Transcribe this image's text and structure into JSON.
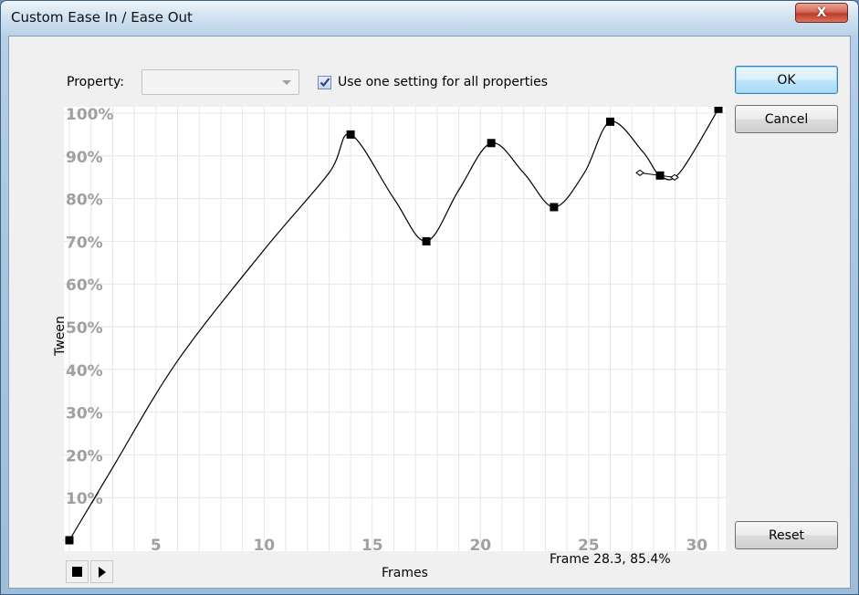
{
  "window": {
    "title": "Custom Ease In / Ease Out",
    "close_glyph": "X"
  },
  "property": {
    "label": "Property:",
    "selected_value": ""
  },
  "options": {
    "use_one_setting_label": "Use one setting for all properties",
    "use_one_setting_checked": true
  },
  "buttons": {
    "ok": "OK",
    "cancel": "Cancel",
    "reset": "Reset"
  },
  "graph": {
    "ylabel": "Tween",
    "xlabel": "Frames",
    "readout": "Frame 28.3,  85.4%",
    "y_ticks": [
      "100%",
      "90%",
      "80%",
      "70%",
      "60%",
      "50%",
      "40%",
      "30%",
      "20%",
      "10%"
    ],
    "x_ticks": [
      "5",
      "10",
      "15",
      "20",
      "25",
      "30"
    ]
  },
  "chart_data": {
    "type": "line",
    "title": "",
    "xlabel": "Frames",
    "ylabel": "Tween",
    "xlim": [
      1,
      31
    ],
    "ylim": [
      0,
      100
    ],
    "grid": true,
    "series": [
      {
        "values": [
          [
            1,
            0
          ],
          [
            3,
            17
          ],
          [
            6,
            42
          ],
          [
            10,
            68
          ],
          [
            13,
            86
          ],
          [
            14,
            95
          ],
          [
            16,
            80
          ],
          [
            17.5,
            70
          ],
          [
            19,
            82
          ],
          [
            20.5,
            93
          ],
          [
            22,
            86
          ],
          [
            23.4,
            78
          ],
          [
            24.8,
            86
          ],
          [
            26,
            98
          ],
          [
            27.5,
            91
          ],
          [
            28.3,
            85.4
          ],
          [
            29.2,
            86
          ],
          [
            31,
            101
          ]
        ]
      }
    ],
    "control_points": [
      [
        1,
        0
      ],
      [
        14,
        95
      ],
      [
        17.5,
        70
      ],
      [
        20.5,
        93
      ],
      [
        23.4,
        78
      ],
      [
        26,
        98
      ],
      [
        28.3,
        85.4
      ],
      [
        31,
        101
      ]
    ],
    "selected_point": [
      28.3,
      85.4
    ],
    "colors": {
      "line": "#000000",
      "grid": "#e6e6e6",
      "ticks": "#a0a0a0"
    }
  }
}
